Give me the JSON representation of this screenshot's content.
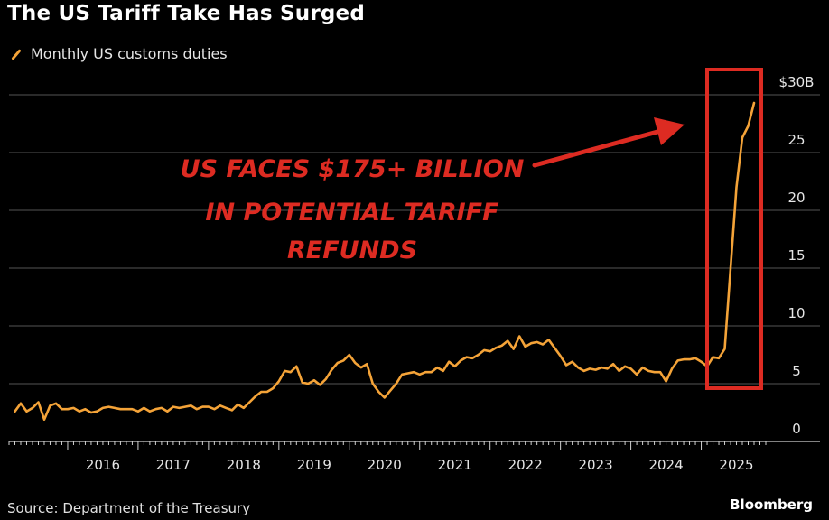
{
  "title": "The US Tariff Take Has Surged",
  "legend": {
    "label": "Monthly US customs duties"
  },
  "source": "Source: Department of the Treasury",
  "brand": "Bloomberg",
  "colors": {
    "line": "#f4a338",
    "annotation": "#dd2b22",
    "grid": "#555555",
    "background": "#000000"
  },
  "chart_data": {
    "type": "line",
    "title": "The US Tariff Take Has Surged",
    "series": [
      {
        "name": "Monthly US customs duties",
        "x_start": "2015-04",
        "interval": "month",
        "values": [
          2.6,
          3.3,
          2.6,
          2.9,
          3.4,
          1.9,
          3.1,
          3.3,
          2.8,
          2.8,
          2.9,
          2.6,
          2.8,
          2.5,
          2.6,
          2.9,
          3.0,
          2.9,
          2.8,
          2.8,
          2.8,
          2.6,
          2.9,
          2.6,
          2.8,
          2.9,
          2.6,
          3.0,
          2.9,
          3.0,
          3.1,
          2.8,
          3.0,
          3.0,
          2.8,
          3.1,
          2.9,
          2.7,
          3.2,
          2.9,
          3.4,
          3.9,
          4.3,
          4.3,
          4.6,
          5.2,
          6.1,
          6.0,
          6.5,
          5.1,
          5.0,
          5.3,
          4.9,
          5.4,
          6.2,
          6.8,
          7.0,
          7.5,
          6.8,
          6.4,
          6.7,
          5.0,
          4.3,
          3.8,
          4.4,
          5.0,
          5.8,
          5.9,
          6.0,
          5.8,
          6.0,
          6.0,
          6.4,
          6.1,
          6.9,
          6.5,
          7.0,
          7.3,
          7.2,
          7.5,
          7.9,
          7.8,
          8.1,
          8.3,
          8.7,
          8.0,
          9.1,
          8.2,
          8.5,
          8.6,
          8.4,
          8.8,
          8.1,
          7.4,
          6.6,
          6.9,
          6.4,
          6.1,
          6.3,
          6.2,
          6.4,
          6.3,
          6.7,
          6.1,
          6.5,
          6.3,
          5.8,
          6.4,
          6.1,
          6.0,
          6.0,
          5.2,
          6.3,
          7.0,
          7.1,
          7.1,
          7.2,
          6.9,
          6.5,
          7.3,
          7.2,
          8.0,
          15.0,
          22.0,
          26.3,
          27.3,
          29.3
        ]
      }
    ],
    "y_ticks": [
      0,
      5,
      10,
      15,
      20,
      25,
      30
    ],
    "y_tick_labels": [
      "0",
      "5",
      "10",
      "15",
      "20",
      "25",
      "$30B"
    ],
    "ylim": [
      0,
      30
    ],
    "x_ticks": [
      "2016",
      "2017",
      "2018",
      "2019",
      "2020",
      "2021",
      "2022",
      "2023",
      "2024",
      "2025"
    ],
    "xlim": [
      "2015-03",
      "2025-12"
    ],
    "grid": true,
    "legend_position": "top-left",
    "annotation": {
      "lines": [
        "US FACES $175+ BILLION",
        "IN POTENTIAL TARIFF",
        "REFUNDS"
      ]
    }
  }
}
